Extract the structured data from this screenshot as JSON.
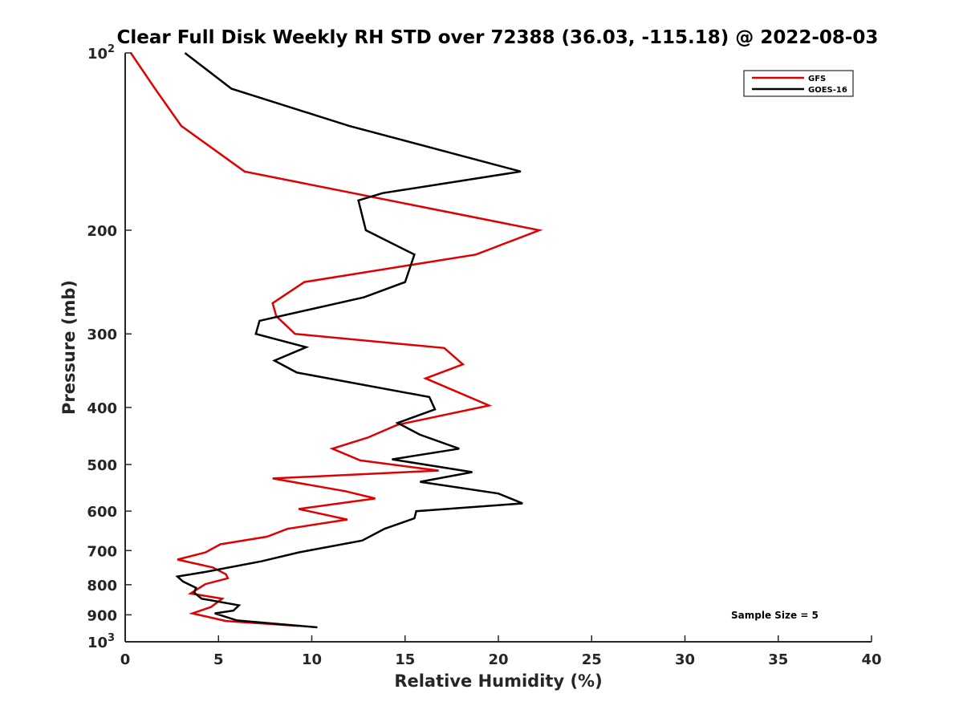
{
  "chart_data": {
    "type": "line",
    "title": "Clear Full Disk Weekly RH STD over 72388 (36.03, -115.18) @ 2022-08-03",
    "xlabel": "Relative Humidity (%)",
    "ylabel": "Pressure (mb)",
    "xlim": [
      0,
      40
    ],
    "ylim": [
      100,
      1000
    ],
    "yscale": "log",
    "y_reversed": true,
    "x_ticks": [
      "0",
      "5",
      "10",
      "15",
      "20",
      "25",
      "30",
      "35",
      "40"
    ],
    "x_tick_values": [
      0,
      5,
      10,
      15,
      20,
      25,
      30,
      35,
      40
    ],
    "y_ticks": [
      {
        "base": "10",
        "exp": "2",
        "value": 100
      },
      {
        "label": "200",
        "value": 200
      },
      {
        "label": "300",
        "value": 300
      },
      {
        "label": "400",
        "value": 400
      },
      {
        "label": "500",
        "value": 500
      },
      {
        "label": "600",
        "value": 600
      },
      {
        "label": "700",
        "value": 700
      },
      {
        "label": "800",
        "value": 800
      },
      {
        "label": "900",
        "value": 900
      },
      {
        "base": "10",
        "exp": "3",
        "value": 1000
      }
    ],
    "legend_position": "top-right",
    "annotation": "Sample Size = 5",
    "series": [
      {
        "name": "GFS",
        "color": "#e00000",
        "points": [
          [
            0.3,
            100
          ],
          [
            1.6,
            115
          ],
          [
            3.0,
            133
          ],
          [
            6.4,
            159
          ],
          [
            22.2,
            200
          ],
          [
            18.8,
            220
          ],
          [
            9.6,
            245
          ],
          [
            7.9,
            266
          ],
          [
            8.1,
            280
          ],
          [
            9.1,
            300
          ],
          [
            17.1,
            317
          ],
          [
            18.1,
            338
          ],
          [
            16.1,
            357
          ],
          [
            19.5,
            397
          ],
          [
            14.6,
            428
          ],
          [
            13.0,
            450
          ],
          [
            11.1,
            470
          ],
          [
            12.6,
            492
          ],
          [
            16.8,
            512
          ],
          [
            7.9,
            528
          ],
          [
            11.8,
            555
          ],
          [
            13.4,
            571
          ],
          [
            9.3,
            595
          ],
          [
            11.9,
            620
          ],
          [
            8.7,
            643
          ],
          [
            7.6,
            663
          ],
          [
            5.1,
            683
          ],
          [
            4.3,
            705
          ],
          [
            2.8,
            725
          ],
          [
            4.7,
            748
          ],
          [
            5.4,
            768
          ],
          [
            5.5,
            780
          ],
          [
            4.3,
            798
          ],
          [
            3.5,
            828
          ],
          [
            5.2,
            845
          ],
          [
            4.6,
            873
          ],
          [
            3.6,
            895
          ],
          [
            5.4,
            922
          ],
          [
            9.3,
            940
          ]
        ]
      },
      {
        "name": "GOES-16",
        "color": "#000000",
        "points": [
          [
            3.2,
            100
          ],
          [
            5.7,
            115
          ],
          [
            12.0,
            133
          ],
          [
            21.2,
            159
          ],
          [
            13.8,
            173
          ],
          [
            12.5,
            178
          ],
          [
            12.9,
            200
          ],
          [
            15.5,
            220
          ],
          [
            15.0,
            245
          ],
          [
            12.8,
            260
          ],
          [
            7.2,
            285
          ],
          [
            7.0,
            300
          ],
          [
            9.7,
            316
          ],
          [
            8.0,
            333
          ],
          [
            9.2,
            349
          ],
          [
            16.3,
            384
          ],
          [
            16.6,
            403
          ],
          [
            14.6,
            425
          ],
          [
            15.8,
            445
          ],
          [
            17.9,
            470
          ],
          [
            14.3,
            490
          ],
          [
            18.6,
            515
          ],
          [
            15.8,
            535
          ],
          [
            20.0,
            560
          ],
          [
            21.3,
            582
          ],
          [
            15.6,
            600
          ],
          [
            15.5,
            617
          ],
          [
            13.9,
            643
          ],
          [
            12.7,
            673
          ],
          [
            9.3,
            705
          ],
          [
            7.3,
            730
          ],
          [
            4.4,
            760
          ],
          [
            2.8,
            775
          ],
          [
            3.1,
            790
          ],
          [
            3.8,
            810
          ],
          [
            3.7,
            825
          ],
          [
            4.1,
            845
          ],
          [
            6.1,
            867
          ],
          [
            5.8,
            885
          ],
          [
            4.8,
            895
          ],
          [
            6.0,
            920
          ],
          [
            10.3,
            945
          ]
        ]
      }
    ]
  }
}
